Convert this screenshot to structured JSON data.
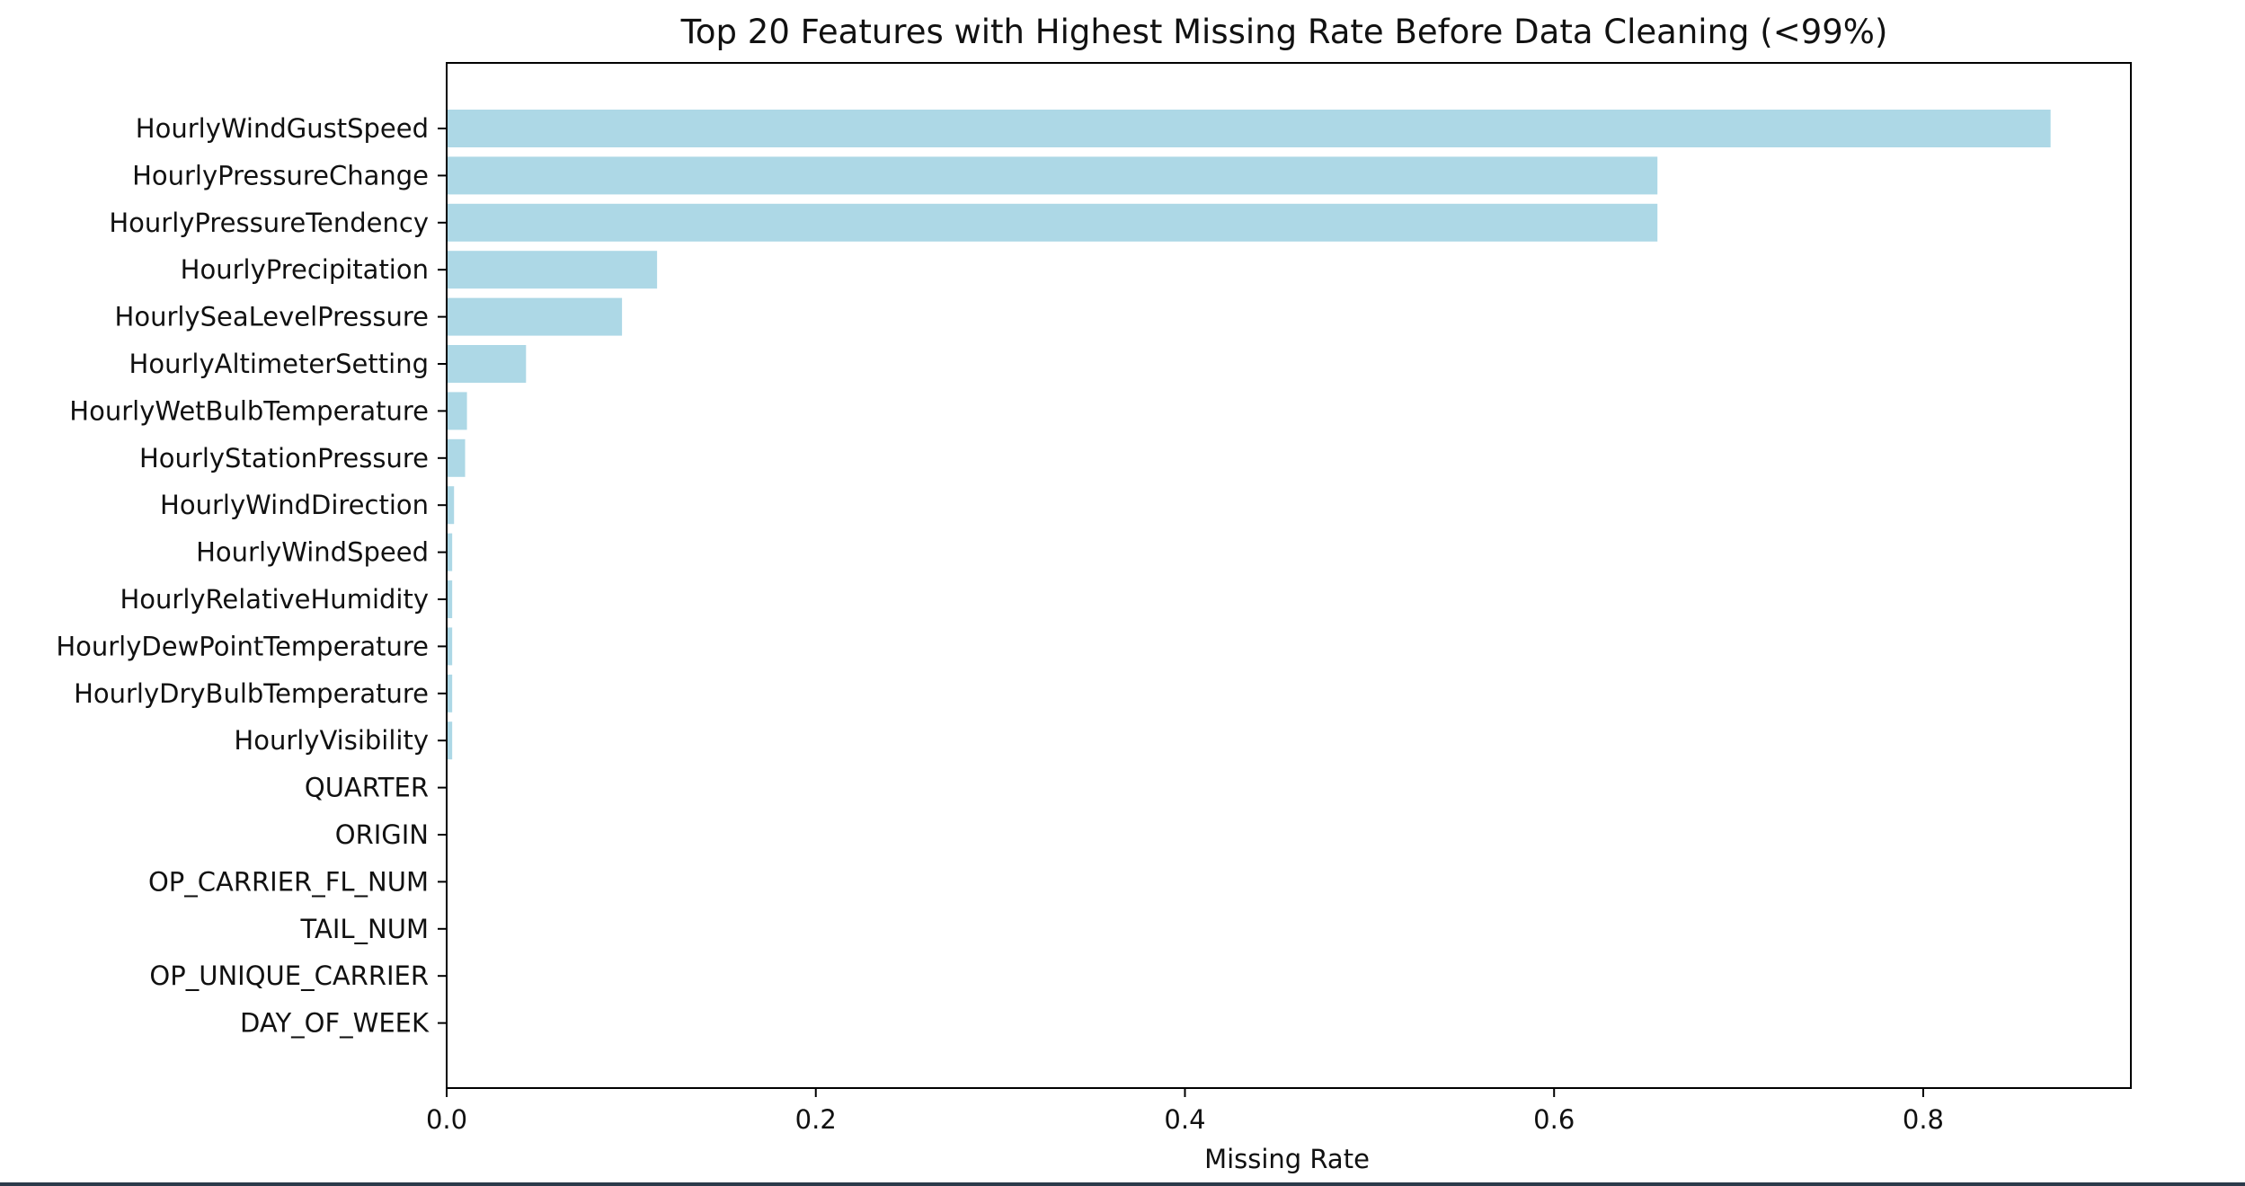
{
  "chart_data": {
    "type": "bar",
    "orientation": "horizontal",
    "title": "Top 20 Features with Highest Missing Rate Before Data Cleaning (<99%)",
    "xlabel": "Missing Rate",
    "ylabel": "",
    "xlim": [
      0,
      0.9125
    ],
    "xticks": [
      "0.0",
      "0.2",
      "0.4",
      "0.6",
      "0.8"
    ],
    "grid": false,
    "bar_color": "#add8e6",
    "categories": [
      "HourlyWindGustSpeed",
      "HourlyPressureChange",
      "HourlyPressureTendency",
      "HourlyPrecipitation",
      "HourlySeaLevelPressure",
      "HourlyAltimeterSetting",
      "HourlyWetBulbTemperature",
      "HourlyStationPressure",
      "HourlyWindDirection",
      "HourlyWindSpeed",
      "HourlyRelativeHumidity",
      "HourlyDewPointTemperature",
      "HourlyDryBulbTemperature",
      "HourlyVisibility",
      "QUARTER",
      "ORIGIN",
      "OP_CARRIER_FL_NUM",
      "TAIL_NUM",
      "OP_UNIQUE_CARRIER",
      "DAY_OF_WEEK"
    ],
    "values": [
      0.869,
      0.656,
      0.656,
      0.114,
      0.095,
      0.043,
      0.011,
      0.01,
      0.004,
      0.003,
      0.003,
      0.003,
      0.003,
      0.003,
      0.0,
      0.0,
      0.0,
      0.0,
      0.0,
      0.0
    ]
  }
}
